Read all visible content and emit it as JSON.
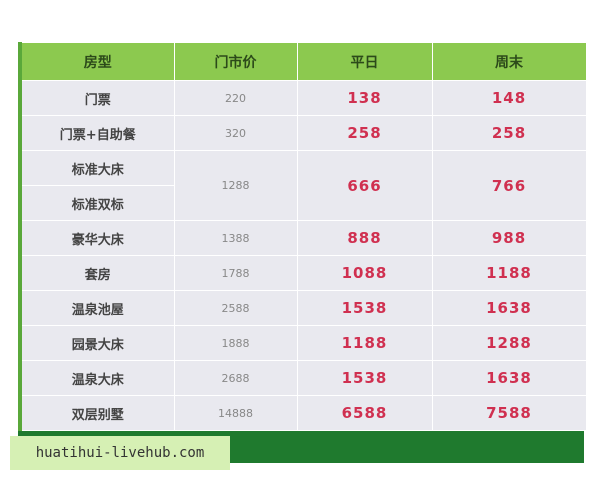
{
  "table": {
    "header": [
      "房型",
      "门市价",
      "平日",
      "周末"
    ],
    "rows": [
      {
        "rooms": [
          "门票"
        ],
        "rack": 220,
        "weekday": 138,
        "weekend": 148
      },
      {
        "rooms": [
          "门票+自助餐"
        ],
        "rack": 320,
        "weekday": 258,
        "weekend": 258
      },
      {
        "rooms": [
          "标准大床",
          "标准双标"
        ],
        "rack": 1288,
        "weekday": 666,
        "weekend": 766
      },
      {
        "rooms": [
          "豪华大床"
        ],
        "rack": 1388,
        "weekday": 888,
        "weekend": 988
      },
      {
        "rooms": [
          "套房"
        ],
        "rack": 1788,
        "weekday": 1088,
        "weekend": 1188
      },
      {
        "rooms": [
          "温泉池屋"
        ],
        "rack": 2588,
        "weekday": 1538,
        "weekend": 1638
      },
      {
        "rooms": [
          "园景大床"
        ],
        "rack": 1888,
        "weekday": 1188,
        "weekend": 1288
      },
      {
        "rooms": [
          "温泉大床"
        ],
        "rack": 2688,
        "weekday": 1538,
        "weekend": 1638
      },
      {
        "rooms": [
          "双层别墅"
        ],
        "rack": 14888,
        "weekday": 6588,
        "weekend": 7588
      }
    ]
  },
  "watermark": "huatihui-livehub.com"
}
